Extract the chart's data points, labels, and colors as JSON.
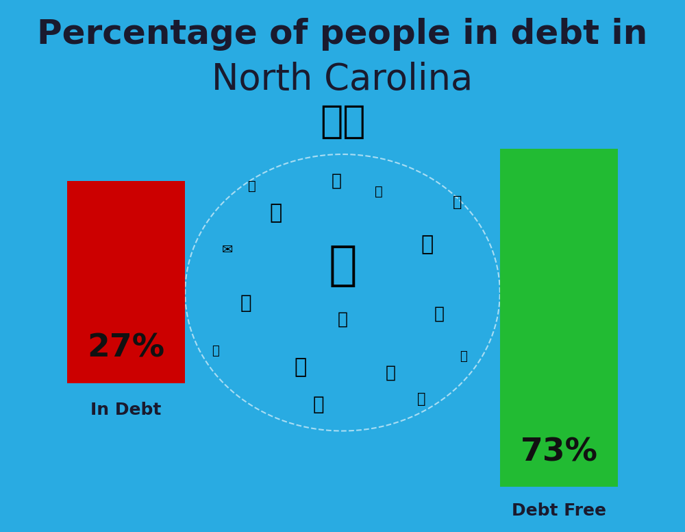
{
  "background_color": "#29ABE2",
  "title_line1": "Percentage of people in debt in",
  "title_line2": "North Carolina",
  "title_color": "#1a1a2e",
  "title_fontsize1": 36,
  "title_fontsize2": 38,
  "bar1_value": 27,
  "bar1_label": "27%",
  "bar1_color": "#CC0000",
  "bar1_caption": "In Debt",
  "bar2_value": 73,
  "bar2_label": "73%",
  "bar2_color": "#22BB33",
  "bar2_caption": "Debt Free",
  "label_fontsize": 34,
  "caption_fontsize": 18,
  "text_color": "#111111",
  "caption_color": "#1a1a2e",
  "flag_emoji": "🇺🇸"
}
